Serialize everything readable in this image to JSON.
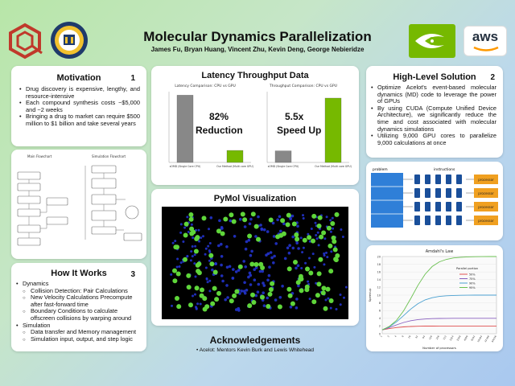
{
  "header": {
    "title": "Molecular Dynamics Parallelization",
    "authors": "James Fu, Bryan Huang, Vincent Zhu, Kevin Deng, George Nebieridze",
    "logos": [
      "hexagon-logo-icon",
      "university-seal-icon",
      "nvidia-logo-icon",
      "aws-logo-icon"
    ],
    "aws_text": "aws"
  },
  "motivation": {
    "title": "Motivation",
    "number": "1",
    "bullets": [
      "Drug discovery is expensive, lengthy, and resource-intensive",
      "Each compound synthesis costs ~$5,000 and ~2 weeks",
      "Bringing a drug to market can require $500 million to $1 billion and take several years"
    ]
  },
  "flowchart": {
    "left_title": "Main Flowchart",
    "right_title": "Simulation Flowchart"
  },
  "how": {
    "title": "How It Works",
    "number": "3",
    "items": [
      {
        "text": "Dynamics",
        "sub": false
      },
      {
        "text": "Collision Detection: Pair Calculations",
        "sub": true
      },
      {
        "text": "New Velocity Calculations Precompute after fast-forward time",
        "sub": true
      },
      {
        "text": "Boundary Conditions to calculate offscreen collisions by warping around",
        "sub": true
      },
      {
        "text": "Simulation",
        "sub": false
      },
      {
        "text": "Data transfer and Memory management",
        "sub": true
      },
      {
        "text": "Simulation input, output, and step logic",
        "sub": true
      }
    ]
  },
  "latency": {
    "title": "Latency Throughput Data",
    "reduction_value": "82%",
    "reduction_label": "Reduction",
    "speedup_value": "5.5x",
    "speedup_label": "Speed Up"
  },
  "pymol": {
    "title": "PyMol Visualization"
  },
  "ack": {
    "title": "Acknowledgements",
    "text": "Acelot: Mentors Kevin Burk and Lewis Whitehead"
  },
  "solution": {
    "title": "High-Level Solution",
    "number": "2",
    "bullets": [
      "Optimize Acelot's event-based molecular dynamics (MD) code to leverage the power of GPUs",
      "By using CUDA (Compute Unified Device Architecture), we significantly reduce the time and cost associated with molecular dynamics simulations",
      "Utilizing 9,000 GPU cores to parallelize 9,000 calculations at once"
    ]
  },
  "diagram": {
    "left_label": "problem",
    "mid_label": "instructions",
    "proc_label": "processor"
  },
  "colors": {
    "accent_green": "#76b900",
    "nvidia": "#76b900",
    "aws_orange": "#ff9900",
    "hex_red": "#c0392b",
    "pymol_blue": "#2233cc",
    "pymol_green": "#5fd63a"
  },
  "chart_data": [
    {
      "type": "bar",
      "title": "Latency Comparison: CPU vs GPU",
      "categories": [
        "sOMD (Single Core CPU)",
        "Our Method (Multi core GPU)"
      ],
      "values": [
        0.95,
        0.17
      ],
      "ylim": [
        0,
        1
      ]
    },
    {
      "type": "bar",
      "title": "Throughput Comparison: CPU vs GPU",
      "categories": [
        "sOMD (Single Core CPU)",
        "Our Method (Multi core GPU)"
      ],
      "values": [
        0.18,
        1.0
      ],
      "ylim": [
        0,
        1.1
      ]
    },
    {
      "type": "line",
      "title": "Amdahl's Law",
      "xlabel": "Number of processors",
      "ylabel": "Speedup",
      "x": [
        1,
        2,
        4,
        8,
        16,
        32,
        64,
        128,
        256,
        512,
        1024,
        2048,
        4096,
        8192,
        16384,
        32768,
        65536
      ],
      "ylim": [
        0,
        20
      ],
      "legend_title": "Parallel portion",
      "series": [
        {
          "name": "50%",
          "color": "#e05050",
          "values": [
            1,
            1.33,
            1.6,
            1.78,
            1.88,
            1.94,
            1.97,
            1.98,
            1.99,
            2,
            2,
            2,
            2,
            2,
            2,
            2,
            2
          ]
        },
        {
          "name": "75%",
          "color": "#8a60c0",
          "values": [
            1,
            1.6,
            2.29,
            2.91,
            3.37,
            3.66,
            3.82,
            3.91,
            3.95,
            3.98,
            3.99,
            4,
            4,
            4,
            4,
            4,
            4
          ]
        },
        {
          "name": "90%",
          "color": "#4aa0d0",
          "values": [
            1,
            1.82,
            3.08,
            4.71,
            6.4,
            7.8,
            8.77,
            9.34,
            9.66,
            9.83,
            9.91,
            9.96,
            9.98,
            9.99,
            10,
            10,
            10
          ]
        },
        {
          "name": "95%",
          "color": "#6ac050",
          "values": [
            1,
            1.9,
            3.48,
            5.93,
            9.14,
            12.55,
            15.42,
            17.41,
            18.62,
            19.28,
            19.64,
            19.82,
            19.91,
            19.95,
            19.98,
            19.99,
            19.99
          ]
        }
      ]
    }
  ]
}
